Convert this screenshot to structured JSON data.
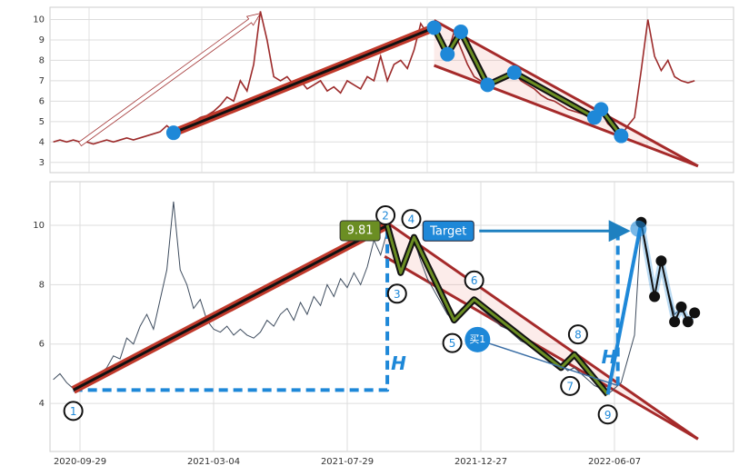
{
  "chart_data": [
    {
      "type": "line",
      "color": "#9c2a2a",
      "values": [
        4.0,
        4.1,
        4.0,
        4.1,
        4.0,
        4.0,
        3.9,
        4.0,
        4.1,
        4.0,
        4.1,
        4.2,
        4.1,
        4.2,
        4.3,
        4.4,
        4.5,
        4.8,
        4.5,
        4.6,
        4.8,
        5.0,
        5.2,
        5.3,
        5.5,
        5.8,
        6.2,
        6.0,
        7.0,
        6.5,
        7.8,
        10.4,
        9.0,
        7.2,
        7.0,
        7.2,
        6.8,
        7.0,
        6.6,
        6.8,
        7.0,
        6.5,
        6.7,
        6.4,
        7.0,
        6.8,
        6.6,
        7.2,
        7.0,
        8.2,
        7.0,
        7.8,
        8.0,
        7.6,
        8.5,
        9.8,
        9.3,
        9.6,
        8.8,
        8.3,
        9.4,
        8.6,
        7.8,
        7.2,
        7.0,
        6.8,
        7.0,
        7.2,
        7.3,
        7.4,
        7.0,
        6.8,
        6.6,
        6.3,
        6.1,
        6.0,
        5.8,
        5.6,
        5.5,
        5.4,
        5.3,
        5.2,
        5.5,
        4.9,
        4.6,
        4.3,
        4.8,
        5.2,
        7.5,
        10.0,
        8.2,
        7.5,
        8.0,
        7.2,
        7.0,
        6.9,
        7.0
      ],
      "ylim": [
        2.5,
        10.6
      ],
      "yticks": [
        3,
        4,
        5,
        6,
        7,
        8,
        9,
        10
      ],
      "grid": true,
      "markers": {
        "color": "#1e88d8",
        "points": [
          [
            18,
            4.45
          ],
          [
            57,
            9.6
          ],
          [
            59,
            8.3
          ],
          [
            61,
            9.4
          ],
          [
            65,
            6.8
          ],
          [
            69,
            7.4
          ],
          [
            81,
            5.2
          ],
          [
            82,
            5.6
          ],
          [
            85,
            4.3
          ]
        ]
      },
      "trend_channel": [
        [
          57,
          9.96
        ],
        [
          57,
          7.75
        ],
        [
          96.5,
          2.82
        ]
      ],
      "arrow": [
        [
          4,
          3.9
        ],
        [
          31,
          10.3
        ]
      ]
    },
    {
      "type": "line",
      "color": "#3e4c5e",
      "categories": [
        null,
        null,
        null,
        null,
        "2020-09-29",
        null,
        null,
        null,
        null,
        null,
        null,
        null,
        null,
        null,
        null,
        null,
        null,
        null,
        null,
        null,
        null,
        null,
        null,
        null,
        "2021-03-04",
        null,
        null,
        null,
        null,
        null,
        null,
        null,
        null,
        null,
        null,
        null,
        null,
        null,
        null,
        null,
        null,
        null,
        null,
        null,
        "2021-07-29",
        null,
        null,
        null,
        null,
        null,
        null,
        null,
        null,
        null,
        null,
        null,
        null,
        null,
        null,
        null,
        null,
        null,
        null,
        null,
        "2021-12-27",
        null,
        null,
        null,
        null,
        null,
        null,
        null,
        null,
        null,
        null,
        null,
        null,
        null,
        null,
        null,
        null,
        null,
        null,
        null,
        "2022-06-07",
        null,
        null,
        null,
        null,
        null,
        null,
        null,
        null,
        null,
        null,
        null,
        null
      ],
      "values": [
        4.8,
        5.0,
        4.7,
        4.5,
        4.6,
        4.7,
        4.9,
        5.0,
        5.2,
        5.6,
        5.5,
        6.2,
        6.0,
        6.6,
        7.0,
        6.5,
        7.5,
        8.5,
        10.8,
        8.5,
        8.0,
        7.2,
        7.5,
        6.8,
        6.5,
        6.4,
        6.6,
        6.3,
        6.5,
        6.3,
        6.2,
        6.4,
        6.8,
        6.6,
        7.0,
        7.2,
        6.8,
        7.4,
        7.0,
        7.6,
        7.3,
        8.0,
        7.6,
        8.2,
        7.9,
        8.4,
        8.0,
        8.6,
        9.5,
        9.0,
        9.81,
        9.2,
        8.5,
        9.0,
        9.5,
        8.8,
        8.2,
        7.8,
        7.4,
        7.0,
        6.8,
        7.0,
        7.3,
        7.5,
        7.2,
        7.0,
        6.8,
        6.6,
        6.5,
        6.3,
        6.1,
        6.0,
        5.9,
        5.7,
        5.6,
        5.4,
        5.3,
        5.1,
        5.2,
        5.0,
        4.8,
        4.6,
        4.5,
        4.3,
        4.5,
        4.7,
        5.5,
        6.3,
        10.1,
        9.0,
        7.6,
        8.8,
        7.8,
        7.0,
        7.2,
        6.8,
        7.0
      ],
      "ylim": [
        2.38,
        11.47
      ],
      "yticks": [
        4,
        6,
        8,
        10
      ],
      "grid": true,
      "pattern": [
        {
          "label": "1",
          "index": 3,
          "value": 4.45
        },
        {
          "label": "2",
          "index": 50,
          "value": 10.0
        },
        {
          "label": "3",
          "index": 52,
          "value": 8.4
        },
        {
          "label": "4",
          "index": 54,
          "value": 9.6
        },
        {
          "label": "5",
          "index": 60,
          "value": 6.8
        },
        {
          "label": "6",
          "index": 63,
          "value": 7.5
        },
        {
          "label": "7",
          "index": 76,
          "value": 5.2
        },
        {
          "label": "8",
          "index": 78,
          "value": 5.65
        },
        {
          "label": "9",
          "index": 83,
          "value": 4.3
        }
      ],
      "trend_channel": [
        [
          49.6,
          10.15
        ],
        [
          49.6,
          8.95
        ],
        [
          96.5,
          2.8
        ]
      ],
      "projection": [
        [
          88,
          10.1
        ],
        [
          90,
          7.6
        ],
        [
          91,
          8.8
        ],
        [
          93,
          6.75
        ],
        [
          94,
          7.25
        ],
        [
          95,
          6.75
        ],
        [
          96,
          7.05
        ]
      ],
      "measure": [
        [
          3,
          4.45
        ],
        [
          50,
          4.45
        ],
        [
          50,
          10.0
        ]
      ],
      "target_measure": [
        [
          84.5,
          4.6
        ],
        [
          84.5,
          9.81
        ]
      ],
      "peak_label": "9.81",
      "target_label": "Target",
      "buy": {
        "label": "买1",
        "index": 63.5,
        "value": 6.15
      },
      "height_labels": [
        "H",
        "H"
      ]
    }
  ]
}
